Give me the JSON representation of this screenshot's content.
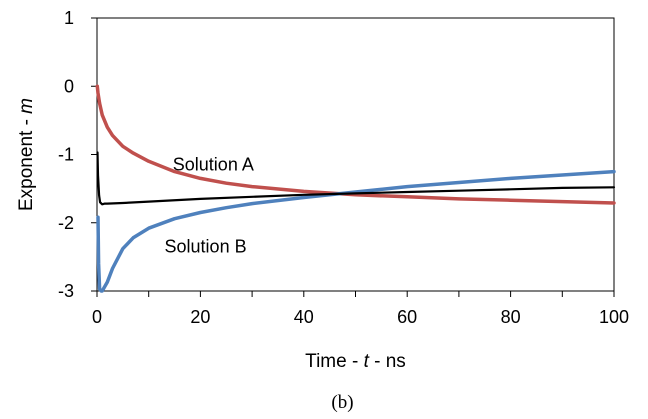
{
  "chart_data": {
    "type": "line",
    "title": "",
    "caption": "(b)",
    "xlabel_parts": [
      "Time - ",
      "t",
      " - ns"
    ],
    "ylabel_parts": [
      "Exponent - ",
      "m"
    ],
    "xlim": [
      0,
      100
    ],
    "ylim": [
      -3,
      1
    ],
    "xticks": [
      0,
      20,
      40,
      60,
      80,
      100
    ],
    "yticks": [
      1,
      0,
      -1,
      -2,
      -3
    ],
    "xtick_labels": [
      "0",
      "20",
      "40",
      "60",
      "80",
      "100"
    ],
    "ytick_labels": [
      "1",
      "0",
      "-1",
      "-2",
      "-3"
    ],
    "grid": false,
    "annotations": [
      {
        "text": "Solution A",
        "x": 22.5,
        "y": -1.15
      },
      {
        "text": "Solution B",
        "x": 21,
        "y": -2.35
      }
    ],
    "series": [
      {
        "color": "#c0504d",
        "x": [
          0.05,
          0.2,
          0.5,
          1,
          2,
          3,
          5,
          7,
          10,
          15,
          20,
          25,
          30,
          40,
          50,
          60,
          70,
          80,
          90,
          100
        ],
        "y": [
          0.0,
          -0.1,
          -0.25,
          -0.42,
          -0.6,
          -0.72,
          -0.88,
          -0.98,
          -1.1,
          -1.25,
          -1.35,
          -1.42,
          -1.47,
          -1.54,
          -1.59,
          -1.62,
          -1.65,
          -1.67,
          -1.69,
          -1.71
        ]
      },
      {
        "color": "#4f81bd",
        "x": [
          0.2,
          0.3,
          0.5,
          0.8,
          1,
          2,
          3,
          5,
          7,
          10,
          15,
          20,
          25,
          30,
          40,
          50,
          60,
          70,
          80,
          90,
          100
        ],
        "y": [
          -1.92,
          -2.6,
          -2.97,
          -3.0,
          -3.0,
          -2.87,
          -2.67,
          -2.38,
          -2.22,
          -2.08,
          -1.94,
          -1.85,
          -1.78,
          -1.72,
          -1.63,
          -1.55,
          -1.47,
          -1.41,
          -1.35,
          -1.3,
          -1.25
        ]
      },
      {
        "color": "#000000",
        "x": [
          0.1,
          0.2,
          0.4,
          0.6,
          1,
          1.5,
          2,
          5,
          10,
          20,
          30,
          40,
          50,
          60,
          70,
          80,
          90,
          100
        ],
        "y": [
          -0.97,
          -1.3,
          -1.6,
          -1.7,
          -1.73,
          -1.72,
          -1.72,
          -1.71,
          -1.69,
          -1.65,
          -1.62,
          -1.59,
          -1.57,
          -1.55,
          -1.53,
          -1.51,
          -1.49,
          -1.48
        ]
      }
    ]
  }
}
